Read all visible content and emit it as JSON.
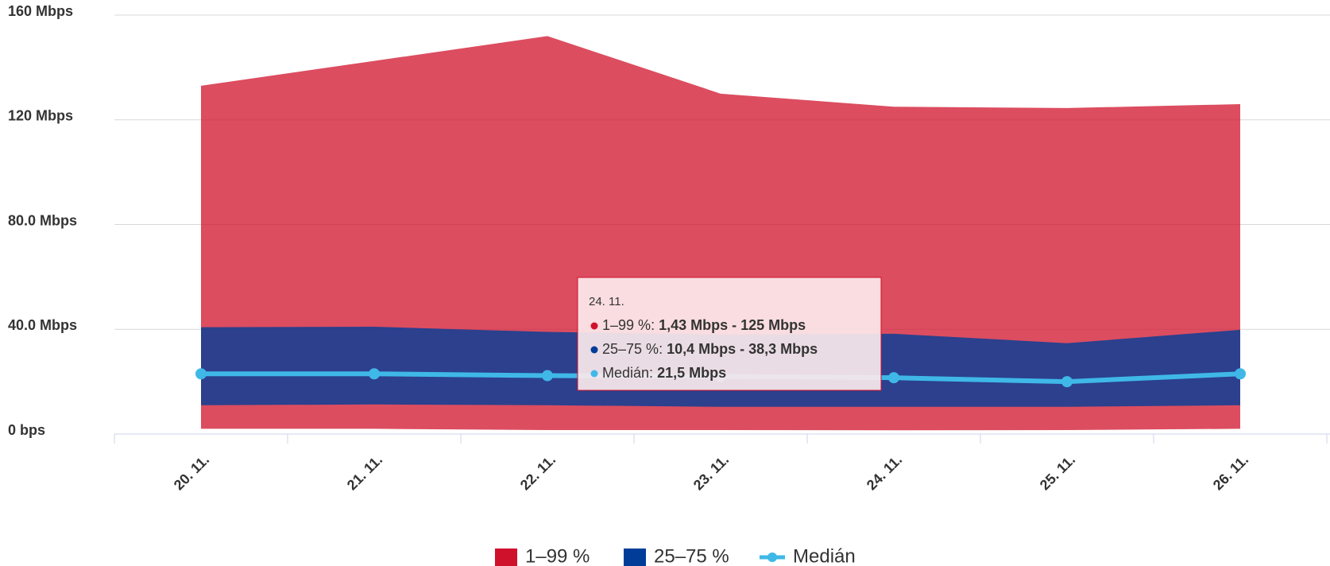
{
  "chart_data": {
    "type": "arearange",
    "categories": [
      "20. 11.",
      "21. 11.",
      "22. 11.",
      "23. 11.",
      "24. 11.",
      "25. 11.",
      "26. 11."
    ],
    "series": [
      {
        "name": "1–99 %",
        "color": "#d0112b",
        "low": [
          2,
          2,
          1.5,
          1.5,
          1.43,
          1.5,
          2
        ],
        "high": [
          133,
          142.5,
          152,
          130,
          125,
          124.5,
          126
        ]
      },
      {
        "name": "25–75 %",
        "color": "#003d99",
        "low": [
          11,
          11.3,
          11,
          10.4,
          10.4,
          10.4,
          11
        ],
        "high": [
          40.8,
          41,
          39,
          38,
          38.3,
          34.7,
          39.8
        ]
      },
      {
        "name": "Medián",
        "color": "#3fb8e8",
        "values": [
          23,
          23,
          22.3,
          22,
          21.5,
          20,
          23
        ]
      }
    ],
    "ylim": [
      0,
      160
    ],
    "yticks": [
      {
        "value": 0,
        "label": "0 bps"
      },
      {
        "value": 40,
        "label": "40.0 Mbps"
      },
      {
        "value": 80,
        "label": "80.0 Mbps"
      },
      {
        "value": 120,
        "label": "120 Mbps"
      },
      {
        "value": 160,
        "label": "160 Mbps"
      }
    ],
    "grid": true,
    "tooltip": {
      "category": 4,
      "labels": [
        "1,43 Mbps - 125 Mbps",
        "10,4 Mbps - 38,3 Mbps",
        "21,5 Mbps"
      ]
    }
  }
}
